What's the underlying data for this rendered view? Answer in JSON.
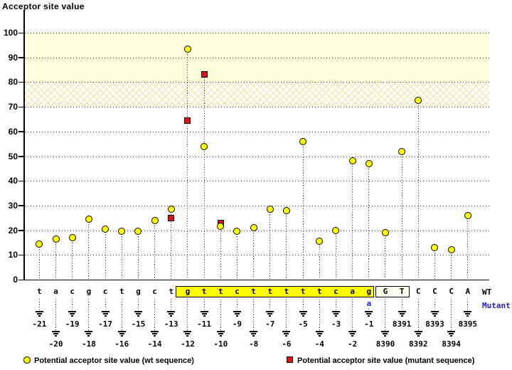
{
  "title": "Acceptor site value",
  "row_labels": {
    "wt": "WT",
    "mutant": "Mutant"
  },
  "legend": {
    "wt_label": "Potential acceptor site value (wt sequence)",
    "mutant_label": "Potential acceptor site value (mutant sequence)"
  },
  "colors": {
    "wt_marker": "#ffff00",
    "mutant_marker": "#dd1111",
    "band_solid": "#ffffdc",
    "mutant_text": "#2222cc",
    "intron_box_fill": "#ffff00",
    "exon_box_fill": "#fffff0"
  },
  "chart_data": {
    "type": "scatter",
    "title": "Acceptor site value",
    "ylabel": "Acceptor site value",
    "ylim": [
      0,
      109
    ],
    "yticks": [
      0,
      10,
      20,
      30,
      40,
      50,
      60,
      70,
      80,
      90,
      100
    ],
    "grid": "dotted horizontal lines at every 10 units",
    "threshold_bands": [
      {
        "from": 80,
        "to": 100,
        "style": "solid"
      },
      {
        "from": 70,
        "to": 80,
        "style": "hatched"
      }
    ],
    "series_info": [
      {
        "name": "wt",
        "marker": "yellow-circle"
      },
      {
        "name": "mutant",
        "marker": "red-square"
      }
    ],
    "points": [
      {
        "base": "t",
        "pos": "-21",
        "wt": 14.5
      },
      {
        "base": "a",
        "pos": "-20",
        "wt": 16.5
      },
      {
        "base": "c",
        "pos": "-19",
        "wt": 17
      },
      {
        "base": "g",
        "pos": "-18",
        "wt": 24.5
      },
      {
        "base": "c",
        "pos": "-17",
        "wt": 20.5
      },
      {
        "base": "t",
        "pos": "-16",
        "wt": 19.5
      },
      {
        "base": "g",
        "pos": "-15",
        "wt": 19.5
      },
      {
        "base": "c",
        "pos": "-14",
        "wt": 24
      },
      {
        "base": "t",
        "pos": "-13",
        "wt": 28.5,
        "mut": 25
      },
      {
        "base": "g",
        "pos": "-12",
        "wt": 93.5,
        "mut": 64.5
      },
      {
        "base": "t",
        "pos": "-11",
        "wt": 54,
        "mut": 83
      },
      {
        "base": "t",
        "pos": "-10",
        "wt": 21.5,
        "mut": 23
      },
      {
        "base": "c",
        "pos": "-9",
        "wt": 19.5
      },
      {
        "base": "t",
        "pos": "-8",
        "wt": 21
      },
      {
        "base": "t",
        "pos": "-7",
        "wt": 28.5
      },
      {
        "base": "t",
        "pos": "-6",
        "wt": 28
      },
      {
        "base": "t",
        "pos": "-5",
        "wt": 56
      },
      {
        "base": "t",
        "pos": "-4",
        "wt": 15.5
      },
      {
        "base": "c",
        "pos": "-3",
        "wt": 20
      },
      {
        "base": "a",
        "pos": "-2",
        "wt": 48
      },
      {
        "base": "g",
        "pos": "-1",
        "wt": 47,
        "mutant_base": "a"
      },
      {
        "base": "G",
        "pos": "8390",
        "wt": 19
      },
      {
        "base": "T",
        "pos": "8391",
        "wt": 52
      },
      {
        "base": "C",
        "pos": "8392",
        "wt": 72.5
      },
      {
        "base": "C",
        "pos": "8393",
        "wt": 13
      },
      {
        "base": "C",
        "pos": "8394",
        "wt": 12
      },
      {
        "base": "A",
        "pos": "8395",
        "wt": 26
      }
    ],
    "intron_highlight": {
      "from_pos": "-12",
      "to_pos": "-1"
    },
    "exon_highlight": {
      "from_pos": "8390",
      "to_pos": "8391"
    }
  }
}
